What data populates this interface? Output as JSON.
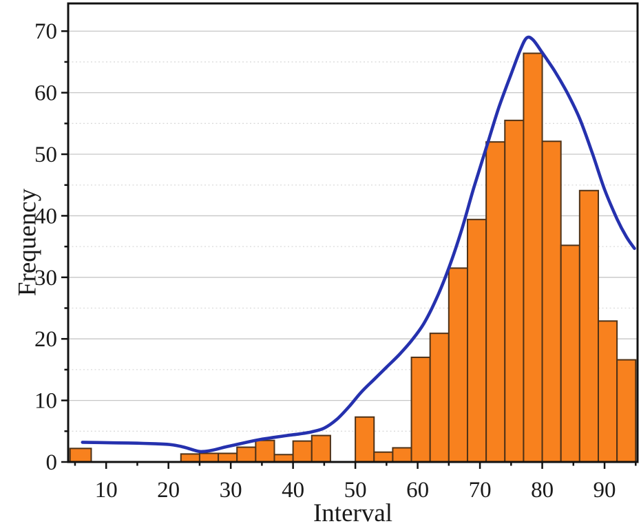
{
  "figure": {
    "background": "#ffffff"
  },
  "chart_data": {
    "type": "bar",
    "subtype": "histogram_with_fit_curve",
    "title": "",
    "xlabel": "Interval",
    "ylabel": "Frequency",
    "xlim": [
      3.9,
      95.3
    ],
    "ylim": [
      0,
      74.5
    ],
    "x_major_ticks": [
      10,
      20,
      30,
      40,
      50,
      60,
      70,
      80,
      90
    ],
    "x_minor_ticks": [
      5,
      15,
      25,
      35,
      45,
      55,
      65,
      75,
      85,
      95
    ],
    "y_major_ticks": [
      0,
      10,
      20,
      30,
      40,
      50,
      60,
      70
    ],
    "y_minor_ticks": [
      5,
      15,
      25,
      35,
      45,
      55,
      65
    ],
    "grid": {
      "horizontal_major": "solid",
      "horizontal_minor": "dashed",
      "vertical": "none"
    },
    "legend": "none",
    "bars": [
      {
        "x0": 4.2,
        "x1": 7.6,
        "count": 2.2
      },
      {
        "x0": 22.0,
        "x1": 25.0,
        "count": 1.3
      },
      {
        "x0": 25.0,
        "x1": 28.0,
        "count": 1.4
      },
      {
        "x0": 28.0,
        "x1": 31.0,
        "count": 1.4
      },
      {
        "x0": 31.0,
        "x1": 34.0,
        "count": 2.4
      },
      {
        "x0": 34.0,
        "x1": 37.0,
        "count": 3.5
      },
      {
        "x0": 37.0,
        "x1": 40.0,
        "count": 1.2
      },
      {
        "x0": 40.0,
        "x1": 43.0,
        "count": 3.4
      },
      {
        "x0": 43.0,
        "x1": 46.0,
        "count": 4.3
      },
      {
        "x0": 50.0,
        "x1": 53.0,
        "count": 7.3
      },
      {
        "x0": 53.0,
        "x1": 56.0,
        "count": 1.6
      },
      {
        "x0": 56.0,
        "x1": 59.0,
        "count": 2.3
      },
      {
        "x0": 59.0,
        "x1": 62.0,
        "count": 17.0
      },
      {
        "x0": 62.0,
        "x1": 65.0,
        "count": 20.9
      },
      {
        "x0": 65.0,
        "x1": 68.0,
        "count": 31.5
      },
      {
        "x0": 68.0,
        "x1": 71.0,
        "count": 39.4
      },
      {
        "x0": 71.0,
        "x1": 74.0,
        "count": 52.0
      },
      {
        "x0": 74.0,
        "x1": 77.0,
        "count": 55.5
      },
      {
        "x0": 77.0,
        "x1": 80.0,
        "count": 66.4
      },
      {
        "x0": 80.0,
        "x1": 83.0,
        "count": 52.1
      },
      {
        "x0": 83.0,
        "x1": 86.0,
        "count": 35.2
      },
      {
        "x0": 86.0,
        "x1": 89.0,
        "count": 44.1
      },
      {
        "x0": 89.0,
        "x1": 92.0,
        "count": 22.9
      },
      {
        "x0": 92.0,
        "x1": 95.0,
        "count": 16.6
      }
    ],
    "curve_name": "distribution-fit-curve",
    "curve_points": [
      [
        6.2,
        3.2
      ],
      [
        9,
        3.15
      ],
      [
        12,
        3.1
      ],
      [
        15,
        3.05
      ],
      [
        18,
        2.95
      ],
      [
        20.5,
        2.8
      ],
      [
        22.5,
        2.4
      ],
      [
        24.5,
        1.8
      ],
      [
        25.5,
        1.7
      ],
      [
        27,
        1.9
      ],
      [
        29,
        2.4
      ],
      [
        31,
        2.85
      ],
      [
        33,
        3.3
      ],
      [
        35,
        3.7
      ],
      [
        37,
        4.0
      ],
      [
        39,
        4.3
      ],
      [
        41,
        4.55
      ],
      [
        43,
        4.9
      ],
      [
        45,
        5.5
      ],
      [
        47,
        6.9
      ],
      [
        49,
        9.0
      ],
      [
        51,
        11.4
      ],
      [
        53,
        13.4
      ],
      [
        55,
        15.4
      ],
      [
        57,
        17.4
      ],
      [
        59,
        19.7
      ],
      [
        61,
        22.5
      ],
      [
        63,
        26.5
      ],
      [
        65,
        31.5
      ],
      [
        67,
        37.5
      ],
      [
        69,
        44.5
      ],
      [
        71,
        51.0
      ],
      [
        73,
        57.5
      ],
      [
        75,
        63.0
      ],
      [
        76.5,
        67.0
      ],
      [
        77.5,
        68.9
      ],
      [
        78.5,
        68.6
      ],
      [
        80,
        66.5
      ],
      [
        82,
        63.5
      ],
      [
        84,
        60.0
      ],
      [
        86,
        55.8
      ],
      [
        88,
        50.3
      ],
      [
        90,
        44.3
      ],
      [
        92,
        39.5
      ],
      [
        93.5,
        36.6
      ],
      [
        94.8,
        34.7
      ]
    ],
    "colors": {
      "bar_fill": "#F8811E",
      "bar_edge": "#4F3217",
      "curve": "#2531AE",
      "grid_major": "#C6C6C6",
      "grid_minor": "#DADADA",
      "frame": "#111111",
      "text": "#1A1A1A"
    }
  }
}
